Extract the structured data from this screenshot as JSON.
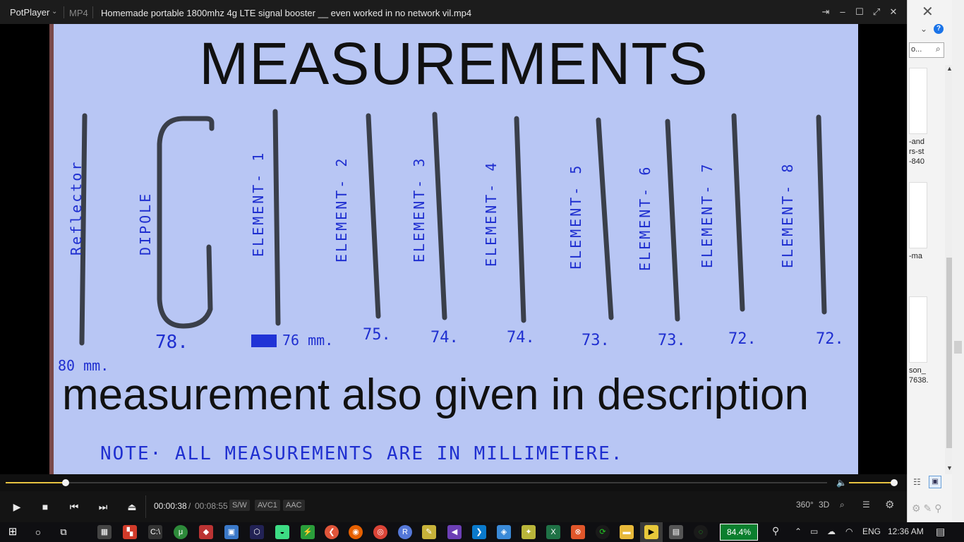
{
  "player": {
    "app_name": "PotPlayer",
    "format": "MP4",
    "file_title": "Homemade portable 1800mhz 4g LTE signal booster __ even worked in no network vil.mp4",
    "time_current": "00:00:38",
    "time_separator": "/",
    "time_total": "00:08:55",
    "badges": [
      "S/W",
      "AVC1",
      "AAC"
    ],
    "progress_fraction": 0.073,
    "volume_fraction": 1.0,
    "accent": "#e7c341",
    "right_controls": [
      "360°",
      "3D"
    ]
  },
  "video_frame": {
    "heading": "MEASUREMENTS",
    "caption": "measurement also given in description",
    "element_labels": [
      "Reflector",
      "DIPOLE",
      "ELEMENT- 1",
      "ELEMENT- 2",
      "ELEMENT- 3",
      "ELEMENT- 4",
      "ELEMENT- 5",
      "ELEMENT- 6",
      "ELEMENT- 7",
      "ELEMENT- 8"
    ],
    "lengths": [
      "80 mm.",
      "78.",
      "76 mm.",
      "75.",
      "74.",
      "74.",
      "73.",
      "73.",
      "72.",
      "72."
    ],
    "note": "NOTE·   ALL   MEASUREMENTS   ARE  IN   MILLIMETERE."
  },
  "background_window": {
    "search_placeholder": "o...",
    "snippets": [
      "-and\nrs-st\n-840",
      "-ma",
      "son_\n7638."
    ]
  },
  "taskbar": {
    "battery_percent": "84.4%",
    "language": "ENG",
    "clock": "12:36 AM"
  }
}
